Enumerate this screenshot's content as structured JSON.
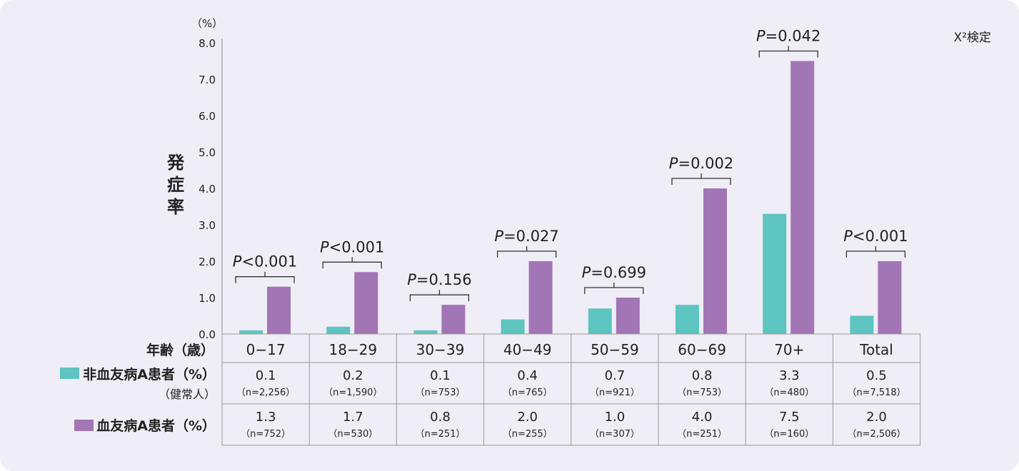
{
  "colors": {
    "teal": "#5ec4bf",
    "purple": "#a275b5",
    "background": "#efedf6",
    "grid": "#9a9a9a"
  },
  "chart_data": {
    "type": "bar",
    "ylabel": "発症率",
    "yunit": "（%）",
    "test_label": "X²検定",
    "ylim": [
      0,
      8
    ],
    "yticks": [
      "0.0",
      "1.0",
      "2.0",
      "3.0",
      "4.0",
      "5.0",
      "6.0",
      "7.0",
      "8.0"
    ],
    "categories": [
      "0-17",
      "18-29",
      "30-39",
      "40-49",
      "50-59",
      "60-69",
      "70+",
      "Total"
    ],
    "series": [
      {
        "name": "非血友病A患者（%）（健常人）",
        "values": [
          0.1,
          0.2,
          0.1,
          0.4,
          0.7,
          0.8,
          3.3,
          0.5
        ]
      },
      {
        "name": "血友病A患者（%）",
        "values": [
          1.3,
          1.7,
          0.8,
          2.0,
          1.0,
          4.0,
          7.5,
          2.0
        ]
      }
    ],
    "p_values": [
      "P<0.001",
      "P<0.001",
      "P=0.156",
      "P=0.027",
      "P=0.699",
      "P=0.002",
      "P=0.042",
      "P<0.001"
    ]
  },
  "table": {
    "header_label": "年齢（歳）",
    "row1_label": "非血友病A患者（%）",
    "row1_sub": "（健常人）",
    "row2_label": "血友病A患者（%）",
    "row1_values": [
      "0.1",
      "0.2",
      "0.1",
      "0.4",
      "0.7",
      "0.8",
      "3.3",
      "0.5"
    ],
    "row1_n": [
      "（n=2,256）",
      "（n=1,590）",
      "（n=753）",
      "（n=765）",
      "（n=921）",
      "（n=753）",
      "（n=480）",
      "（n=7,518）"
    ],
    "row2_values": [
      "1.3",
      "1.7",
      "0.8",
      "2.0",
      "1.0",
      "4.0",
      "7.5",
      "2.0"
    ],
    "row2_n": [
      "（n=752）",
      "（n=530）",
      "（n=251）",
      "（n=255）",
      "（n=307）",
      "（n=251）",
      "（n=160）",
      "（n=2,506）"
    ]
  }
}
